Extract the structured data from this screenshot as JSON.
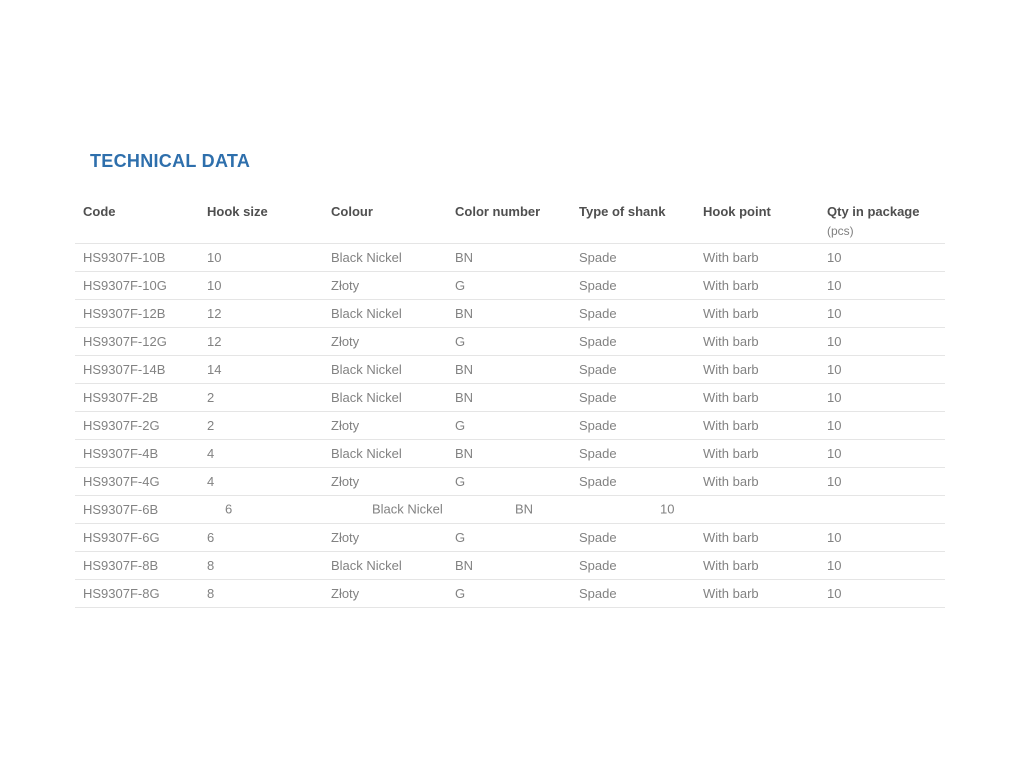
{
  "page": {
    "title": "TECHNICAL DATA"
  },
  "colors": {
    "title_blue": "#2e6fac",
    "header_text": "#4f4f4f",
    "cell_text": "#828282",
    "divider": "#e5e5e5"
  },
  "table": {
    "headers": [
      "Code",
      "Hook size",
      "Colour",
      "Color number",
      "Type of shank",
      "Hook point",
      "Qty in package"
    ],
    "last_header_subtext": "(pcs)",
    "rows": [
      {
        "variant": "normal",
        "cells": [
          "HS9307F-10B",
          "10",
          "Black Nickel",
          "BN",
          "Spade",
          "With barb",
          "10"
        ]
      },
      {
        "variant": "normal",
        "cells": [
          "HS9307F-10G",
          "10",
          "Złoty",
          "G",
          "Spade",
          "With barb",
          "10"
        ]
      },
      {
        "variant": "normal",
        "cells": [
          "HS9307F-12B",
          "12",
          "Black Nickel",
          "BN",
          "Spade",
          "With barb",
          "10"
        ]
      },
      {
        "variant": "normal",
        "cells": [
          "HS9307F-12G",
          "12",
          "Złoty",
          "G",
          "Spade",
          "With barb",
          "10"
        ]
      },
      {
        "variant": "normal",
        "cells": [
          "HS9307F-14B",
          "14",
          "Black Nickel",
          "BN",
          "Spade",
          "With barb",
          "10"
        ]
      },
      {
        "variant": "normal",
        "cells": [
          "HS9307F-2B",
          "2",
          "Black Nickel",
          "BN",
          "Spade",
          "With barb",
          "10"
        ]
      },
      {
        "variant": "normal",
        "cells": [
          "HS9307F-2G",
          "2",
          "Złoty",
          "G",
          "Spade",
          "With barb",
          "10"
        ]
      },
      {
        "variant": "normal",
        "cells": [
          "HS9307F-4B",
          "4",
          "Black Nickel",
          "BN",
          "Spade",
          "With barb",
          "10"
        ]
      },
      {
        "variant": "normal",
        "cells": [
          "HS9307F-4G",
          "4",
          "Złoty",
          "G",
          "Spade",
          "With barb",
          "10"
        ]
      },
      {
        "variant": "offset",
        "cells": [
          "HS9307F-6B",
          "6",
          "Black Nickel",
          "BN",
          "10"
        ]
      },
      {
        "variant": "normal",
        "cells": [
          "HS9307F-6G",
          "6",
          "Złoty",
          "G",
          "Spade",
          "With barb",
          "10"
        ]
      },
      {
        "variant": "normal",
        "cells": [
          "HS9307F-8B",
          "8",
          "Black Nickel",
          "BN",
          "Spade",
          "With barb",
          "10"
        ]
      },
      {
        "variant": "normal",
        "cells": [
          "HS9307F-8G",
          "8",
          "Złoty",
          "G",
          "Spade",
          "With barb",
          "10"
        ]
      }
    ]
  }
}
